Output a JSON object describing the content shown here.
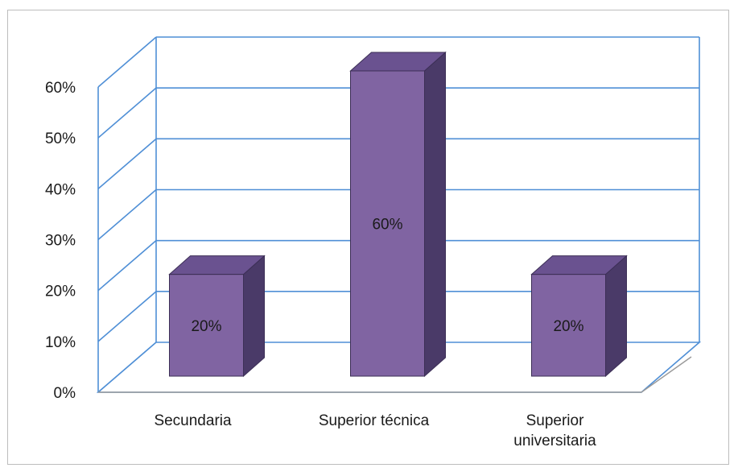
{
  "chart_data": {
    "type": "bar",
    "style": "3d-column",
    "categories": [
      [
        "Secundaria"
      ],
      [
        "Superior técnica"
      ],
      [
        "Superior",
        "universitaria"
      ]
    ],
    "values": [
      20,
      60,
      20
    ],
    "data_labels": [
      "20%",
      "60%",
      "20%"
    ],
    "ylim": [
      0,
      60
    ],
    "yticks": [
      0,
      10,
      20,
      30,
      40,
      50,
      60
    ],
    "ytick_labels": [
      "0%",
      "10%",
      "20%",
      "30%",
      "40%",
      "50%",
      "60%"
    ],
    "title": "",
    "xlabel": "",
    "ylabel": "",
    "grid": true,
    "legend": "none",
    "colors": {
      "bar_front": "#8064a2",
      "bar_side": "#4a3a68",
      "bar_top": "#6a5290",
      "bar_outline": "#3c2f56",
      "grid": "#4f8fd6"
    }
  }
}
